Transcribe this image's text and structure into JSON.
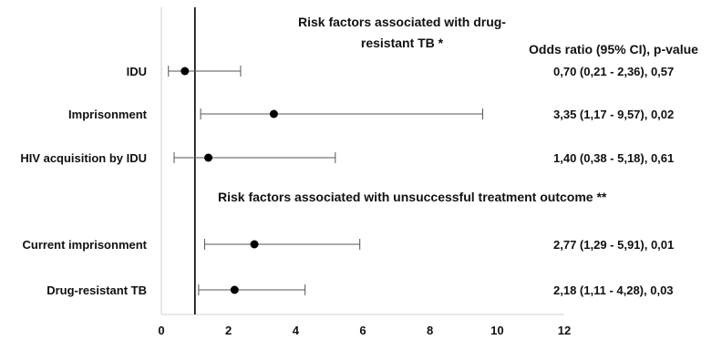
{
  "chart_data": {
    "type": "forest",
    "titles": {
      "section1_line1": "Risk factors associated with drug-",
      "section1_line2": "resistant TB *",
      "column_header": "Odds ratio (95% CI), p-value",
      "section2": "Risk factors associated with unsuccessful treatment outcome **"
    },
    "reference_line": 1,
    "xlim": [
      0,
      12
    ],
    "x_ticks": [
      "0",
      "2",
      "4",
      "6",
      "8",
      "10",
      "12"
    ],
    "rows": [
      {
        "label": "IDU",
        "or": 0.7,
        "ci_low": 0.21,
        "ci_high": 2.36,
        "text": "0,70 (0,21 - 2,36), 0,57"
      },
      {
        "label": "Imprisonment",
        "or": 3.35,
        "ci_low": 1.17,
        "ci_high": 9.57,
        "text": "3,35 (1,17 - 9,57), 0,02"
      },
      {
        "label": "HIV acquisition by IDU",
        "or": 1.4,
        "ci_low": 0.38,
        "ci_high": 5.18,
        "text": "1,40 (0,38 - 5,18), 0,61"
      },
      {
        "label": "Current imprisonment",
        "or": 2.77,
        "ci_low": 1.29,
        "ci_high": 5.91,
        "text": "2,77 (1,29 - 5,91), 0,01"
      },
      {
        "label": "Drug-resistant TB",
        "or": 2.18,
        "ci_low": 1.11,
        "ci_high": 4.28,
        "text": "2,18 (1,11 - 4,28), 0,03"
      }
    ]
  }
}
